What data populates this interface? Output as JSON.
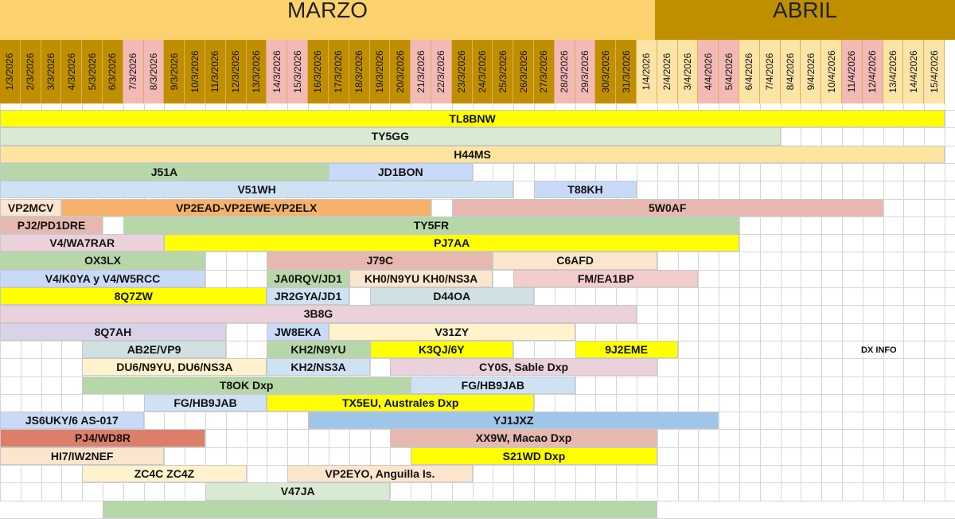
{
  "months": {
    "marzo": "MARZO",
    "abril": "ABRIL"
  },
  "days": [
    "1/3/2026",
    "2/3/2026",
    "3/3/2026",
    "4/3/2026",
    "5/3/2026",
    "6/3/2026",
    "7/3/2026",
    "8/3/2026",
    "9/3/2026",
    "10/3/2026",
    "11/3/2026",
    "12/3/2026",
    "13/3/2026",
    "14/3/2026",
    "15/3/2026",
    "16/3/2026",
    "17/3/2026",
    "18/3/2026",
    "19/3/2026",
    "20/3/2026",
    "21/3/2026",
    "22/3/2026",
    "23/3/2026",
    "24/3/2026",
    "25/3/2026",
    "26/3/2026",
    "27/3/2026",
    "28/3/2026",
    "29/3/2026",
    "30/3/2026",
    "31/3/2026",
    "1/4/2026",
    "2/4/2026",
    "3/4/2026",
    "4/4/2026",
    "5/4/2026",
    "6/4/2026",
    "7/4/2026",
    "8/4/2026",
    "9/4/2026",
    "10/4/2026",
    "11/4/2026",
    "12/4/2026",
    "13/4/2026",
    "14/4/2026",
    "15/4/2026"
  ],
  "weekend_days": [
    6,
    7,
    13,
    14,
    20,
    21,
    27,
    28,
    34,
    35,
    41,
    42
  ],
  "colors": {
    "header_marzo": "#bf8f00",
    "header_abril": "#fce4a6",
    "weekend": "#f2b9b5",
    "yellow": "#ffff00",
    "mint": "#d9ead3",
    "peach": "#fde5a0",
    "green": "#b6d7a8",
    "lightblue": "#c9daf8",
    "paleblue": "#cfe2f3",
    "cream": "#fce5cd",
    "orange": "#f6b26b",
    "rose": "#e6b8af",
    "pink": "#ead1dc",
    "salmon": "#f4cccc",
    "teal": "#d0e0e3",
    "lavender": "#d9d2e9",
    "lightyellow": "#fff2cc",
    "blue": "#9fc5e8",
    "red": "#dd7e6b"
  },
  "rows": [
    [
      {
        "label": "TL8BNW",
        "start": 0,
        "end": 46,
        "color": "yellow"
      }
    ],
    [
      {
        "label": "TY5GG",
        "start": 0,
        "end": 38,
        "color": "mint"
      }
    ],
    [
      {
        "label": "H44MS",
        "start": 0,
        "end": 46,
        "color": "peach"
      }
    ],
    [
      {
        "label": "J51A",
        "start": 0,
        "end": 16,
        "color": "green"
      },
      {
        "label": "JD1BON",
        "start": 16,
        "end": 23,
        "color": "lightblue"
      }
    ],
    [
      {
        "label": "V51WH",
        "start": 0,
        "end": 25,
        "color": "paleblue"
      },
      {
        "label": "T88KH",
        "start": 26,
        "end": 31,
        "color": "lightblue"
      }
    ],
    [
      {
        "label": "VP2MCV",
        "start": 0,
        "end": 3,
        "color": "cream"
      },
      {
        "label": "VP2EAD-VP2EWE-VP2ELX",
        "start": 3,
        "end": 21,
        "color": "orange"
      },
      {
        "label": "5W0AF",
        "start": 22,
        "end": 43,
        "color": "rose"
      }
    ],
    [
      {
        "label": "PJ2/PD1DRE",
        "start": 0,
        "end": 5,
        "color": "rose"
      },
      {
        "label": "TY5FR",
        "start": 6,
        "end": 36,
        "color": "green"
      }
    ],
    [
      {
        "label": "V4/WA7RAR",
        "start": 0,
        "end": 8,
        "color": "pink"
      },
      {
        "label": "PJ7AA",
        "start": 8,
        "end": 36,
        "color": "yellow"
      }
    ],
    [
      {
        "label": "OX3LX",
        "start": 0,
        "end": 10,
        "color": "green"
      },
      {
        "label": "J79C",
        "start": 13,
        "end": 24,
        "color": "rose"
      },
      {
        "label": "C6AFD",
        "start": 24,
        "end": 32,
        "color": "cream"
      }
    ],
    [
      {
        "label": "V4/K0YA y V4/W5RCC",
        "start": 0,
        "end": 10,
        "color": "lightblue"
      },
      {
        "label": "JA0RQV/JD1",
        "start": 13,
        "end": 17,
        "color": "green"
      },
      {
        "label": "KH0/N9YU KH0/NS3A",
        "start": 17,
        "end": 24,
        "color": "cream"
      },
      {
        "label": "FM/EA1BP",
        "start": 25,
        "end": 34,
        "color": "salmon"
      }
    ],
    [
      {
        "label": "8Q7ZW",
        "start": 0,
        "end": 13,
        "color": "yellow"
      },
      {
        "label": "JR2GYA/JD1",
        "start": 13,
        "end": 17,
        "color": "paleblue"
      },
      {
        "label": "D44OA",
        "start": 18,
        "end": 26,
        "color": "teal"
      }
    ],
    [
      {
        "label": "3B8G",
        "start": 0,
        "end": 31,
        "color": "pink"
      }
    ],
    [
      {
        "label": "8Q7AH",
        "start": 0,
        "end": 11,
        "color": "lavender"
      },
      {
        "label": "JW8EKA",
        "start": 13,
        "end": 16,
        "color": "lightblue"
      },
      {
        "label": "V31ZY",
        "start": 16,
        "end": 28,
        "color": "lightyellow"
      }
    ],
    [
      {
        "label": "AB2E/VP9",
        "start": 4,
        "end": 11,
        "color": "teal"
      },
      {
        "label": "KH2/N9YU",
        "start": 13,
        "end": 18,
        "color": "green"
      },
      {
        "label": "K3QJ/6Y",
        "start": 18,
        "end": 25,
        "color": "yellow"
      },
      {
        "label": "9J2EME",
        "start": 28,
        "end": 33,
        "color": "yellow"
      }
    ],
    [
      {
        "label": "DU6/N9YU, DU6/NS3A",
        "start": 4,
        "end": 13,
        "color": "lightyellow"
      },
      {
        "label": "KH2/NS3A",
        "start": 13,
        "end": 18,
        "color": "paleblue"
      },
      {
        "label": "CY0S, Sable Dxp",
        "start": 19,
        "end": 32,
        "color": "pink"
      }
    ],
    [
      {
        "label": "T8OK Dxp",
        "start": 4,
        "end": 20,
        "color": "green"
      },
      {
        "label": "FG/HB9JAB",
        "start": 20,
        "end": 28,
        "color": "paleblue"
      }
    ],
    [
      {
        "label": "FG/HB9JAB",
        "start": 7,
        "end": 13,
        "color": "paleblue"
      },
      {
        "label": "TX5EU, Australes Dxp",
        "start": 13,
        "end": 26,
        "color": "yellow"
      }
    ],
    [
      {
        "label": "JS6UKY/6 AS-017",
        "start": 0,
        "end": 7,
        "color": "lightblue"
      },
      {
        "label": "YJ1JXZ",
        "start": 15,
        "end": 35,
        "color": "blue"
      }
    ],
    [
      {
        "label": "PJ4/WD8R",
        "start": 0,
        "end": 10,
        "color": "red"
      },
      {
        "label": "XX9W, Macao Dxp",
        "start": 19,
        "end": 32,
        "color": "rose"
      }
    ],
    [
      {
        "label": "HI7/IW2NEF",
        "start": 0,
        "end": 8,
        "color": "cream"
      },
      {
        "label": "S21WD Dxp",
        "start": 20,
        "end": 32,
        "color": "yellow"
      }
    ],
    [
      {
        "label": "ZC4C ZC4Z",
        "start": 4,
        "end": 12,
        "color": "lightyellow"
      },
      {
        "label": "VP2EYO, Anguilla Is.",
        "start": 14,
        "end": 23,
        "color": "cream"
      }
    ],
    [
      {
        "label": "V47JA",
        "start": 10,
        "end": 19,
        "color": "mint"
      }
    ],
    [
      {
        "label": "",
        "start": 5,
        "end": 32,
        "color": "green"
      }
    ]
  ],
  "note": "DX INFO"
}
